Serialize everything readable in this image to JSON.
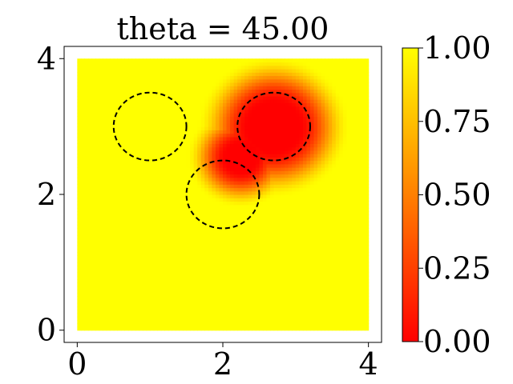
{
  "chart_data": {
    "type": "heatmap",
    "title": "theta = 45.00",
    "xlabel": "",
    "ylabel": "",
    "xlim": [
      -0.18,
      4.18
    ],
    "ylim": [
      -0.18,
      4.18
    ],
    "x_ticks": [
      0,
      2,
      4
    ],
    "y_ticks": [
      0,
      2,
      4
    ],
    "x_tick_labels": [
      "0",
      "2",
      "4"
    ],
    "y_tick_labels": [
      "0",
      "2",
      "4"
    ],
    "domain": [
      0,
      4
    ],
    "colormap": "autumn",
    "colormap_endpoints": [
      "#ff0000",
      "#ffff00"
    ],
    "colorbar": {
      "range": [
        0.0,
        1.0
      ],
      "ticks": [
        0.0,
        0.25,
        0.5,
        0.75,
        1.0
      ],
      "tick_labels": [
        "0.00",
        "0.25",
        "0.50",
        "0.75",
        "1.00"
      ]
    },
    "field": {
      "background_value": 1.0,
      "low_regions": [
        {
          "center": [
            2.7,
            3.0
          ],
          "core_radius": 0.35,
          "falloff_radius": 1.05
        },
        {
          "center": [
            2.25,
            2.55
          ],
          "core_radius": 0.2,
          "falloff_radius": 0.75
        }
      ]
    },
    "obstacles": [
      {
        "center": [
          1.0,
          3.0
        ],
        "radius": 0.5
      },
      {
        "center": [
          2.0,
          2.0
        ],
        "radius": 0.5
      },
      {
        "center": [
          2.7,
          3.0
        ],
        "radius": 0.5
      }
    ],
    "obstacle_style": "dashed circle",
    "grid": false
  }
}
